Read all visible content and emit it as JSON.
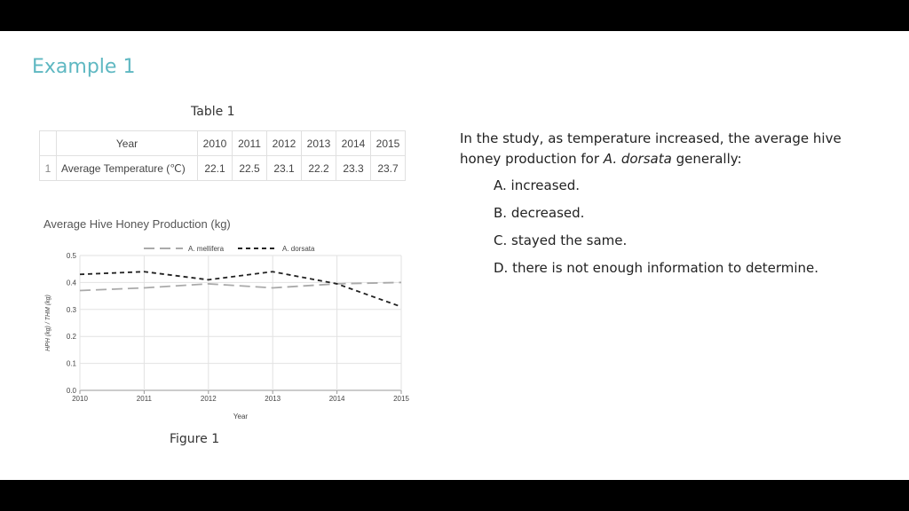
{
  "slide": {
    "title": "Example 1"
  },
  "table": {
    "caption": "Table 1",
    "header_label": "Year",
    "years": [
      "2010",
      "2011",
      "2012",
      "2013",
      "2014",
      "2015"
    ],
    "row_number": "1",
    "row_label": "Average Temperature (℃)",
    "temperatures": [
      "22.1",
      "22.5",
      "23.1",
      "22.2",
      "23.3",
      "23.7"
    ]
  },
  "figure": {
    "caption": "Figure 1"
  },
  "question": {
    "text_before": "In the study, as temperature increased, the average hive honey production for ",
    "species": "A. dorsata",
    "text_after": " generally:",
    "options": [
      "A. increased.",
      "B. decreased.",
      "C. stayed the same.",
      "D. there is not enough information to determine."
    ]
  },
  "chart_data": {
    "type": "line",
    "title": "Average Hive Honey Production (kg)",
    "xlabel": "Year",
    "ylabel": "HPH (kg) / THM (kg)",
    "x": [
      2010,
      2011,
      2012,
      2013,
      2014,
      2015
    ],
    "x_ticks": [
      "2010",
      "2011",
      "2012",
      "2013",
      "2014",
      "2015"
    ],
    "y_ticks": [
      "0.0",
      "0.1",
      "0.2",
      "0.3",
      "0.4",
      "0.5"
    ],
    "ylim": [
      0,
      0.5
    ],
    "grid": true,
    "legend_position": "top",
    "series": [
      {
        "name": "A. mellifera",
        "values": [
          0.37,
          0.38,
          0.395,
          0.38,
          0.395,
          0.4
        ],
        "color": "#aaaaaa",
        "style": "long-dash"
      },
      {
        "name": "A. dorsata",
        "values": [
          0.43,
          0.44,
          0.41,
          0.44,
          0.395,
          0.31
        ],
        "color": "#222222",
        "style": "dash"
      }
    ]
  }
}
